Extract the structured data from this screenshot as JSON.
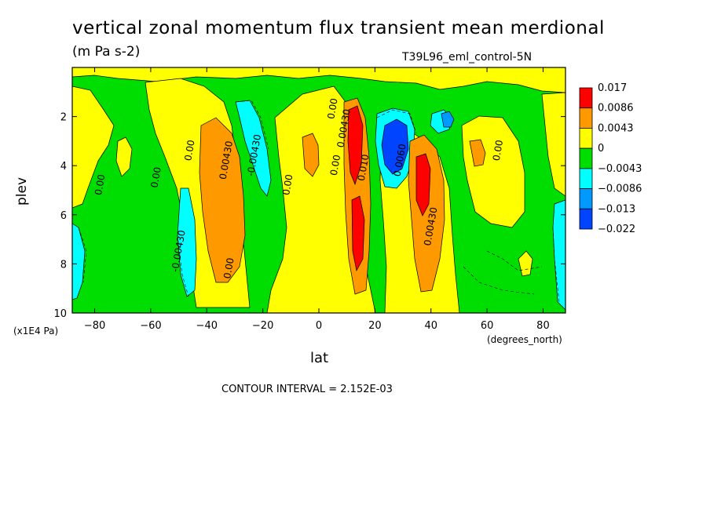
{
  "title": "vertical zonal momentum flux transient mean merdional",
  "units": "(m Pa s-2)",
  "dataset": "T39L96_eml_control-5N",
  "xlabel": "lat",
  "ylabel": "plev",
  "x_units": "(degrees_north)",
  "y_units": "(x1E4 Pa)",
  "contour_interval": "CONTOUR INTERVAL = 2.152E-03",
  "chart_data": {
    "type": "heatmap",
    "x": {
      "ticks": [
        -80,
        -60,
        -40,
        -20,
        0,
        20,
        40,
        60,
        80
      ],
      "range": [
        -88,
        88
      ]
    },
    "y": {
      "ticks": [
        2,
        4,
        6,
        8,
        10
      ],
      "range": [
        10,
        0
      ],
      "reversed": true
    },
    "legend": {
      "placement": "right",
      "labels": [
        "0.017",
        "0.0086",
        "0.0043",
        "0",
        "-0.0043",
        "-0.0086",
        "-0.013",
        "-0.022"
      ],
      "colors": [
        "#ff0000",
        "#ff9900",
        "#ffff00",
        "#00dd00",
        "#00ffff",
        "#0099ff",
        "#0044ff"
      ]
    },
    "background_level": "-0.0043 to 0",
    "features": [
      {
        "lat": -35,
        "plev": 4.5,
        "level": "0.0043 to 0.0086",
        "sign": "positive"
      },
      {
        "lat": 12,
        "plev": 3.5,
        "level": "above 0.0086",
        "sign": "positive"
      },
      {
        "lat": 12,
        "plev": 7.0,
        "level": "above 0.0086",
        "sign": "positive"
      },
      {
        "lat": 37,
        "plev": 4.5,
        "level": "above 0.0086",
        "sign": "positive"
      },
      {
        "lat": 27,
        "plev": 3.5,
        "level": "below -0.013",
        "sign": "negative"
      },
      {
        "lat": -50,
        "plev": 7.5,
        "level": "-0.0086 to -0.0043",
        "sign": "negative"
      },
      {
        "lat": -25,
        "plev": 3.5,
        "level": "-0.0086 to -0.0043",
        "sign": "negative"
      }
    ],
    "contour_labels": [
      {
        "lat": -77,
        "plev": 4.8,
        "text": "0.00"
      },
      {
        "lat": -57,
        "plev": 4.5,
        "text": "0.00"
      },
      {
        "lat": -45,
        "plev": 3.4,
        "text": "0.00"
      },
      {
        "lat": -32,
        "plev": 3.8,
        "text": "0.00430"
      },
      {
        "lat": -22,
        "plev": 3.6,
        "text": "-0.00430"
      },
      {
        "lat": -49,
        "plev": 7.5,
        "text": "-0.00430"
      },
      {
        "lat": -31,
        "plev": 8.2,
        "text": "0.00"
      },
      {
        "lat": -10,
        "plev": 4.8,
        "text": "0.00"
      },
      {
        "lat": 6,
        "plev": 1.7,
        "text": "0.00"
      },
      {
        "lat": 10,
        "plev": 2.5,
        "text": "0.00430"
      },
      {
        "lat": 7,
        "plev": 4.0,
        "text": "0.00"
      },
      {
        "lat": 17,
        "plev": 4.1,
        "text": "0.010"
      },
      {
        "lat": 30,
        "plev": 3.8,
        "text": "0.0060"
      },
      {
        "lat": 41,
        "plev": 6.5,
        "text": "0.00430"
      },
      {
        "lat": 65,
        "plev": 3.4,
        "text": "0.00"
      }
    ]
  }
}
